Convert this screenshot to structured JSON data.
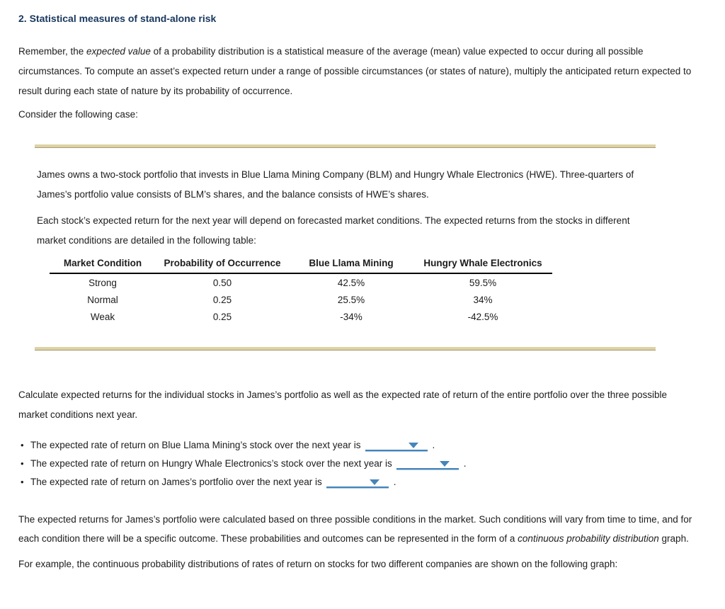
{
  "page": {
    "title": "2. Statistical measures of stand-alone risk"
  },
  "intro": {
    "p1_seg1": "Remember, the ",
    "p1_seg2": "expected value",
    "p1_seg3": " of a probability distribution is a statistical measure of the average (mean) value expected to occur during all possible circumstances. To compute an asset’s expected return under a range of possible circumstances (or states of nature), multiply the anticipated return expected to result during each state of nature by its probability of occurrence.",
    "p2": "Consider the following case:"
  },
  "case_panel": {
    "p1": "James owns a two-stock portfolio that invests in Blue Llama Mining Company (BLM) and Hungry Whale Electronics (HWE). Three-quarters of James’s portfolio value consists of BLM’s shares, and the balance consists of HWE’s shares.",
    "p2": "Each stock’s expected return for the next year will depend on forecasted market conditions. The expected returns from the stocks in different market conditions are detailed in the following table:",
    "table": {
      "headers": {
        "market_condition": "Market Condition",
        "probability": "Probability of Occurrence",
        "blm": "Blue Llama Mining",
        "hwe": "Hungry Whale Electronics"
      },
      "rows": [
        {
          "condition": "Strong",
          "probability": "0.50",
          "blm": "42.5%",
          "hwe": "59.5%"
        },
        {
          "condition": "Normal",
          "probability": "0.25",
          "blm": "25.5%",
          "hwe": "34%"
        },
        {
          "condition": "Weak",
          "probability": "0.25",
          "blm": "-34%",
          "hwe": "-42.5%"
        }
      ]
    }
  },
  "instructions": {
    "p1": "Calculate expected returns for the individual stocks in James’s portfolio as well as the expected rate of return of the entire portfolio over the three possible market conditions next year."
  },
  "questions": {
    "q1": {
      "text": "The expected rate of return on Blue Llama Mining’s stock over the next year is",
      "suffix": "."
    },
    "q2": {
      "text": "The expected rate of return on Hungry Whale Electronics’s stock over the next year is",
      "suffix": "."
    },
    "q3": {
      "text": "The expected rate of return on James’s portfolio over the next year is",
      "suffix": "."
    }
  },
  "outro": {
    "p1_seg1": "The expected returns for James’s portfolio were calculated based on three possible conditions in the market. Such conditions will vary from time to time, and for each condition there will be a specific outcome. These probabilities and outcomes can be represented in the form of a ",
    "p1_seg2": "continuous probability distribution",
    "p1_seg3": " graph.",
    "p2": "For example, the continuous probability distributions of rates of return on stocks for two different companies are shown on the following graph:"
  },
  "ui": {
    "bullet": "•"
  },
  "colors": {
    "accent_navy": "#17375e",
    "dropdown_blue": "#4585ba",
    "rule_tan": "#ddd2a6"
  }
}
